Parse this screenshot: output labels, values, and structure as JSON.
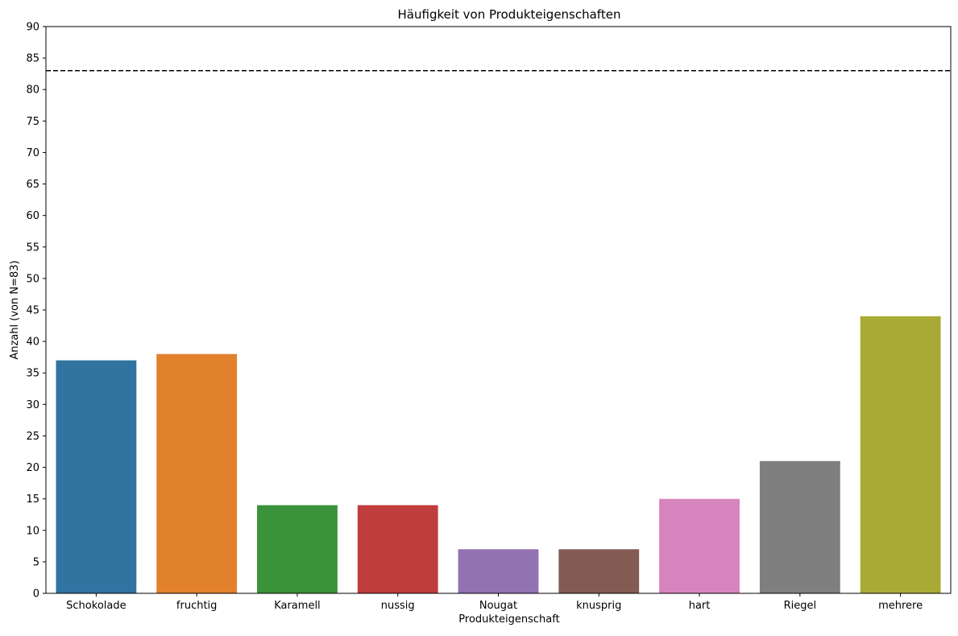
{
  "chart_data": {
    "type": "bar",
    "title": "Häufigkeit von Produkteigenschaften",
    "xlabel": "Produkteigenschaft",
    "ylabel": "Anzahl (von N=83)",
    "categories": [
      "Schokolade",
      "fruchtig",
      "Karamell",
      "nussig",
      "Nougat",
      "knusprig",
      "hart",
      "Riegel",
      "mehrere"
    ],
    "values": [
      37,
      38,
      14,
      14,
      7,
      7,
      15,
      21,
      44
    ],
    "colors": [
      "#3274a1",
      "#e1812c",
      "#3a923a",
      "#c03d3e",
      "#9372b2",
      "#845b53",
      "#d684bd",
      "#7f7f7f",
      "#a9aa35"
    ],
    "ylim": [
      0,
      90
    ],
    "yticks": [
      0,
      5,
      10,
      15,
      20,
      25,
      30,
      35,
      40,
      45,
      50,
      55,
      60,
      65,
      70,
      75,
      80,
      85,
      90
    ],
    "reference_line": {
      "value": 83,
      "style": "dashed",
      "color": "#000000"
    },
    "grid": false,
    "legend": "none"
  }
}
